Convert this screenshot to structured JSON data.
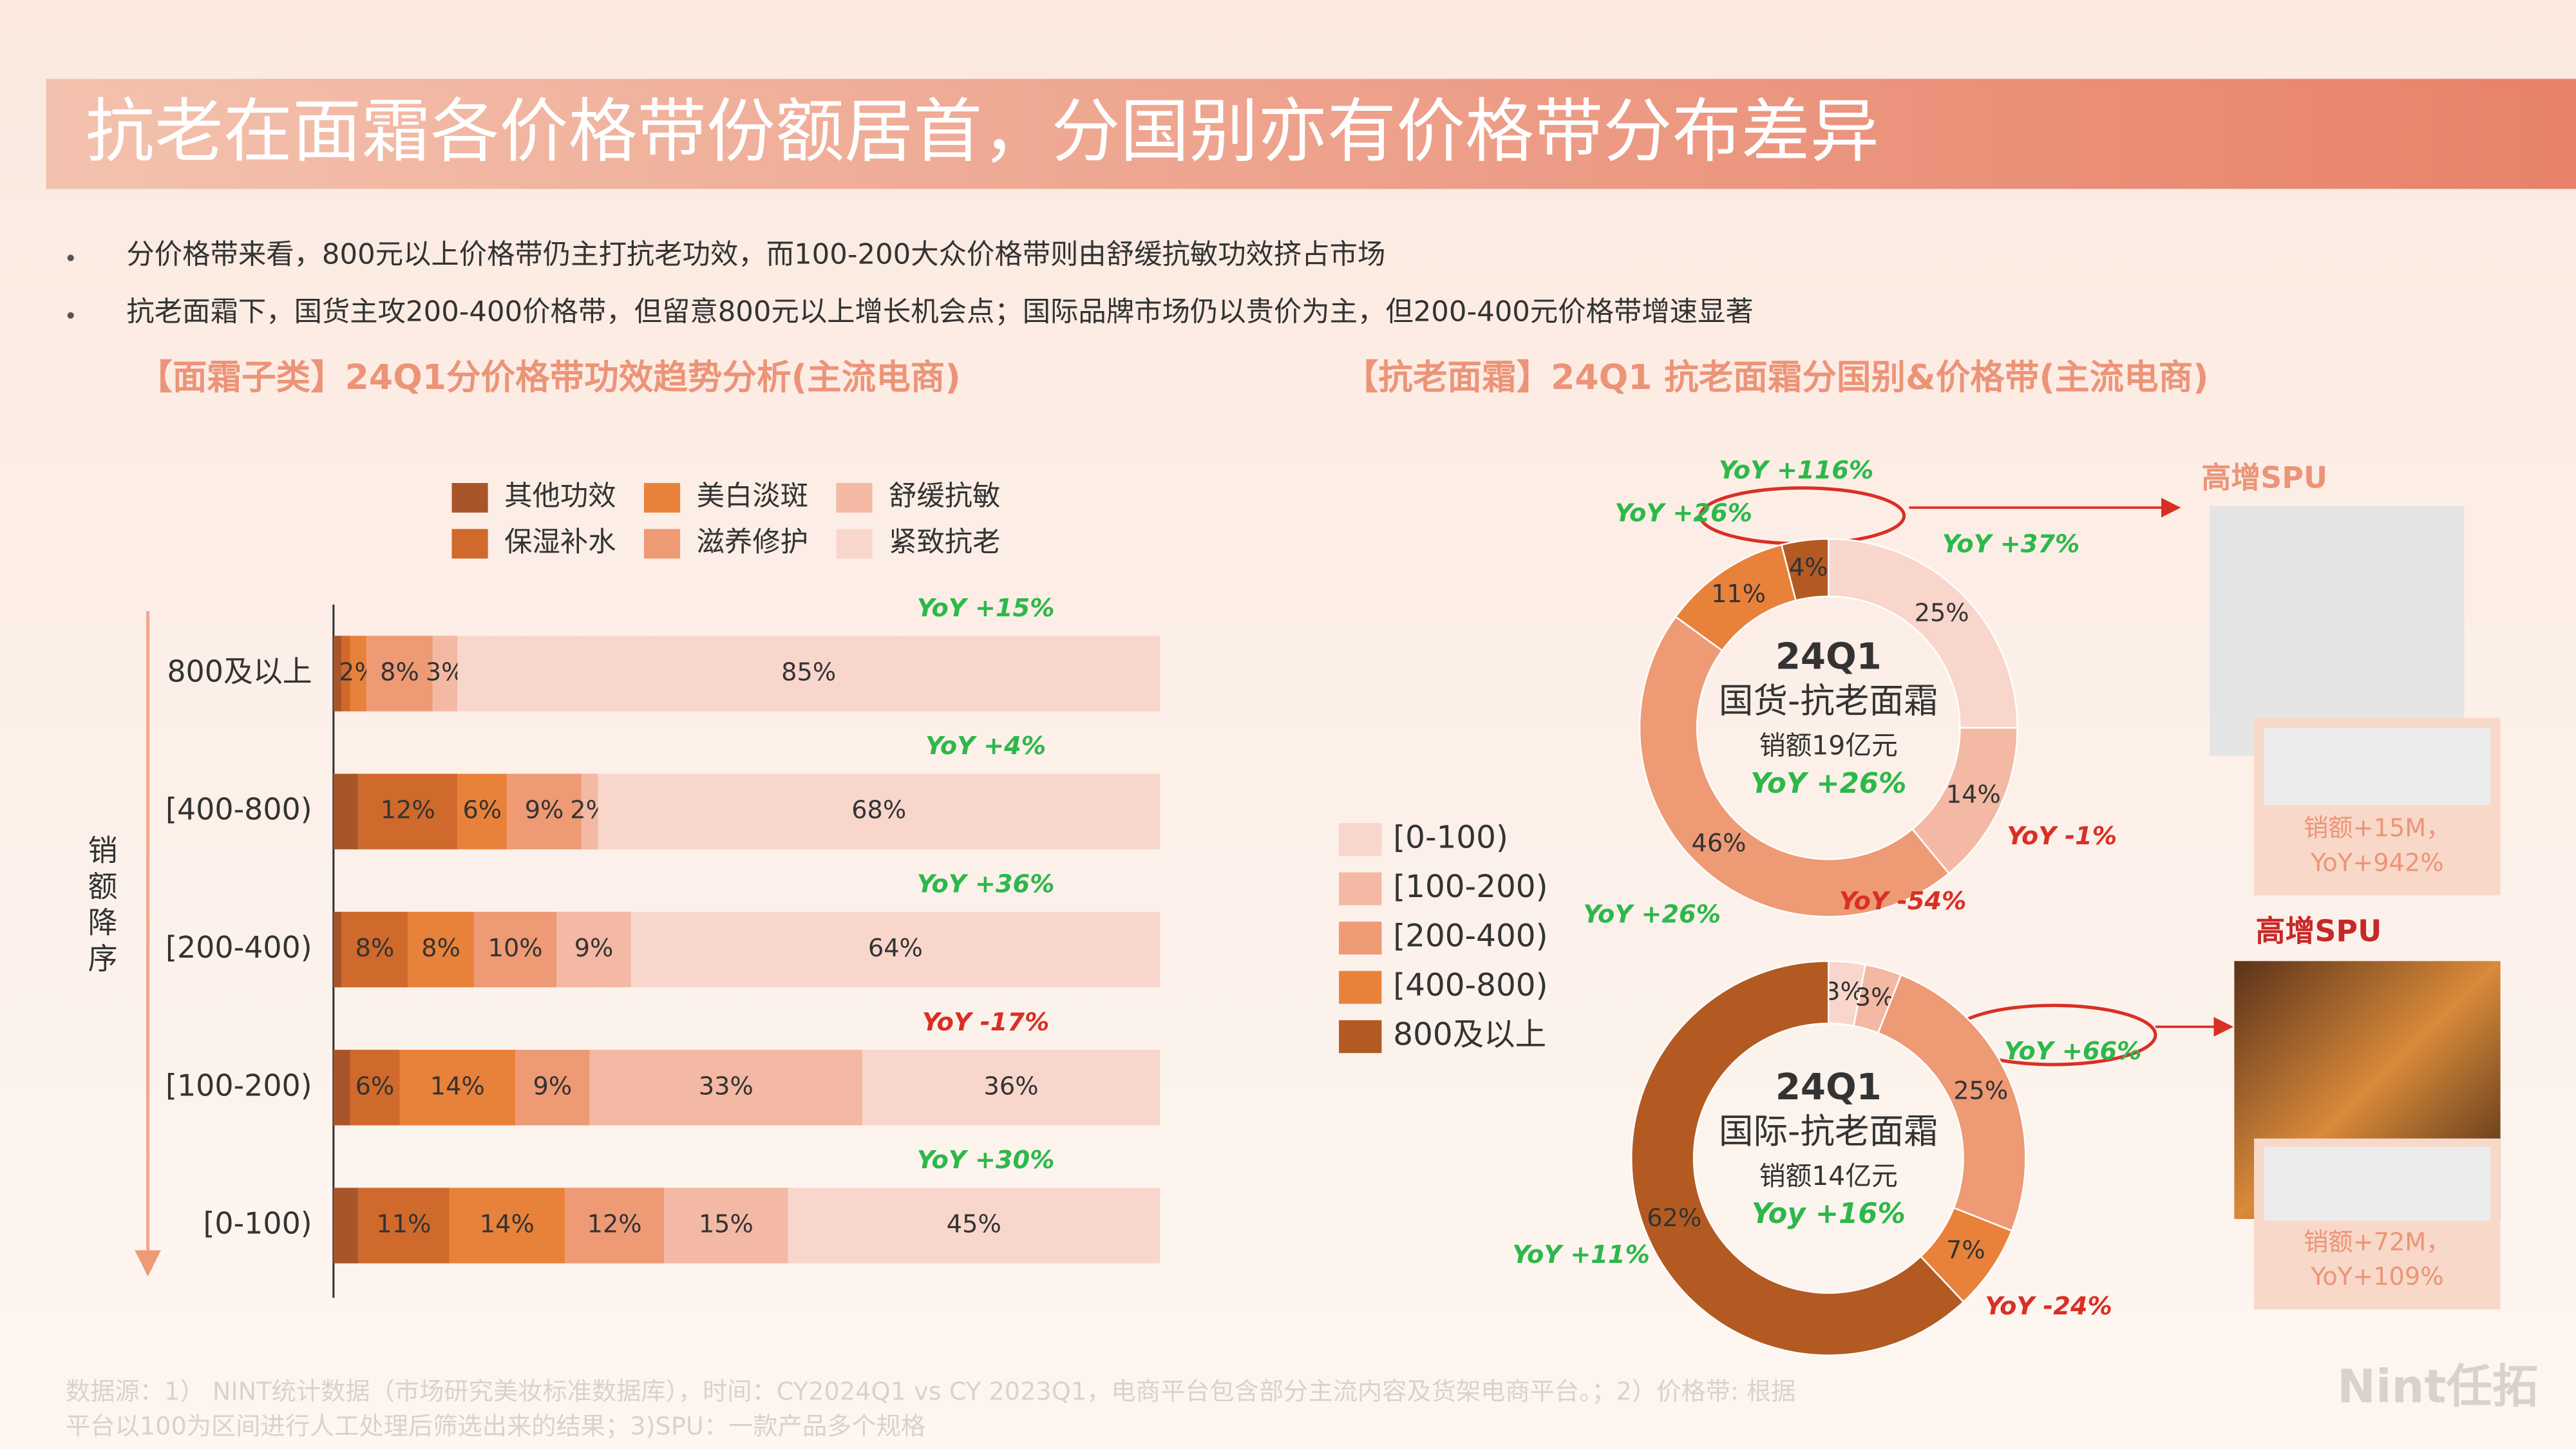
{
  "header": {
    "title": "抗老在面霜各价格带份额居首，分国别亦有价格带分布差异"
  },
  "bullets": [
    "分价格带来看，800元以上价格带仍主打抗老功效，而100-200大众价格带则由舒缓抗敏功效挤占市场",
    "抗老面霜下，国货主攻200-400价格带，但留意800元以上增长机会点；国际品牌市场仍以贵价为主，但200-400元价格带增速显著"
  ],
  "chart_data": [
    {
      "type": "bar",
      "orientation": "horizontal",
      "stacked": true,
      "title": "【面霜子类】24Q1分价格带功效趋势分析(主流电商)",
      "y_label": "销额降序",
      "categories": [
        "800及以上",
        "[400-800)",
        "[200-400)",
        "[100-200)",
        "[0-100)"
      ],
      "xlim": [
        0,
        100
      ],
      "series": [
        {
          "name": "其他功效",
          "color": "#a9552a",
          "values": [
            1,
            3,
            1,
            2,
            3
          ],
          "value_labels": [
            null,
            null,
            null,
            null,
            null
          ]
        },
        {
          "name": "保湿补水",
          "color": "#d0692c",
          "values": [
            1,
            12,
            8,
            6,
            11
          ],
          "value_labels": [
            null,
            "12%",
            "8%",
            "6%",
            "11%"
          ]
        },
        {
          "name": "美白淡斑",
          "color": "#e8823a",
          "values": [
            2,
            6,
            8,
            14,
            14
          ],
          "value_labels": [
            "2%",
            "6%",
            "8%",
            "14%",
            "14%"
          ]
        },
        {
          "name": "滋养修护",
          "color": "#ee9a75",
          "values": [
            8,
            9,
            10,
            9,
            12
          ],
          "value_labels": [
            "8%",
            "9%",
            "10%",
            "9%",
            "12%"
          ]
        },
        {
          "name": "舒缓抗敏",
          "color": "#f3b9a4",
          "values": [
            3,
            2,
            9,
            33,
            15
          ],
          "value_labels": [
            "3%",
            "2%",
            "9%",
            "33%",
            "15%"
          ]
        },
        {
          "name": "紧致抗老",
          "color": "#f8d6cb",
          "values": [
            85,
            68,
            64,
            36,
            45
          ],
          "value_labels": [
            "85%",
            "68%",
            "64%",
            "36%",
            "45%"
          ]
        }
      ],
      "annotations": [
        "YoY +15%",
        "YoY +4%",
        "YoY +36%",
        "YoY -17%",
        "YoY +30%"
      ]
    },
    {
      "type": "donut",
      "title": "【抗老面霜】24Q1 抗老面霜分国别&价格带(主流电商)",
      "categories": [
        "[0-100)",
        "[100-200)",
        "[200-400)",
        "[400-800)",
        "800及以上"
      ],
      "colors": [
        "#f8d6cb",
        "#f3b9a4",
        "#ee9a75",
        "#e8823a",
        "#b35a22"
      ],
      "pies": [
        {
          "center": [
            "24Q1",
            "国货-抗老面霜",
            "销额19亿元",
            "YoY +26%"
          ],
          "values": [
            25,
            14,
            46,
            11,
            4
          ],
          "value_labels": [
            "25%",
            "14%",
            "46%",
            "11%",
            "4%"
          ],
          "annotations": [
            "YoY +37%",
            "YoY -1%",
            "YoY +26%",
            "YoY +26%",
            "YoY +116%"
          ]
        },
        {
          "center": [
            "24Q1",
            "国际-抗老面霜",
            "销额14亿元",
            "Yoy +16%"
          ],
          "values": [
            3,
            3,
            25,
            7,
            62
          ],
          "value_labels": [
            "3%",
            "3%",
            "25%",
            "7%",
            "62%"
          ],
          "annotations": [
            null,
            "YoY -54%",
            "YoY +66%",
            "YoY -24%",
            "YoY +11%"
          ]
        }
      ]
    }
  ],
  "highlights": [
    {
      "label": "高增SPU",
      "caption": [
        "销额+15M，",
        "YoY+942%"
      ]
    },
    {
      "label": "高增SPU",
      "caption": [
        "销额+72M，",
        "YoY+109%"
      ]
    }
  ],
  "footnote": [
    "数据源：1） NINT统计数据（市场研究美妆标准数据库），时间：CY2024Q1 vs CY 2023Q1，电商平台包含部分主流内容及货架电商平台。；2）价格带: 根据",
    "平台以100为区间进行人工处理后筛选出来的结果；3)SPU：一款产品多个规格"
  ],
  "logo": "Nint任拓"
}
